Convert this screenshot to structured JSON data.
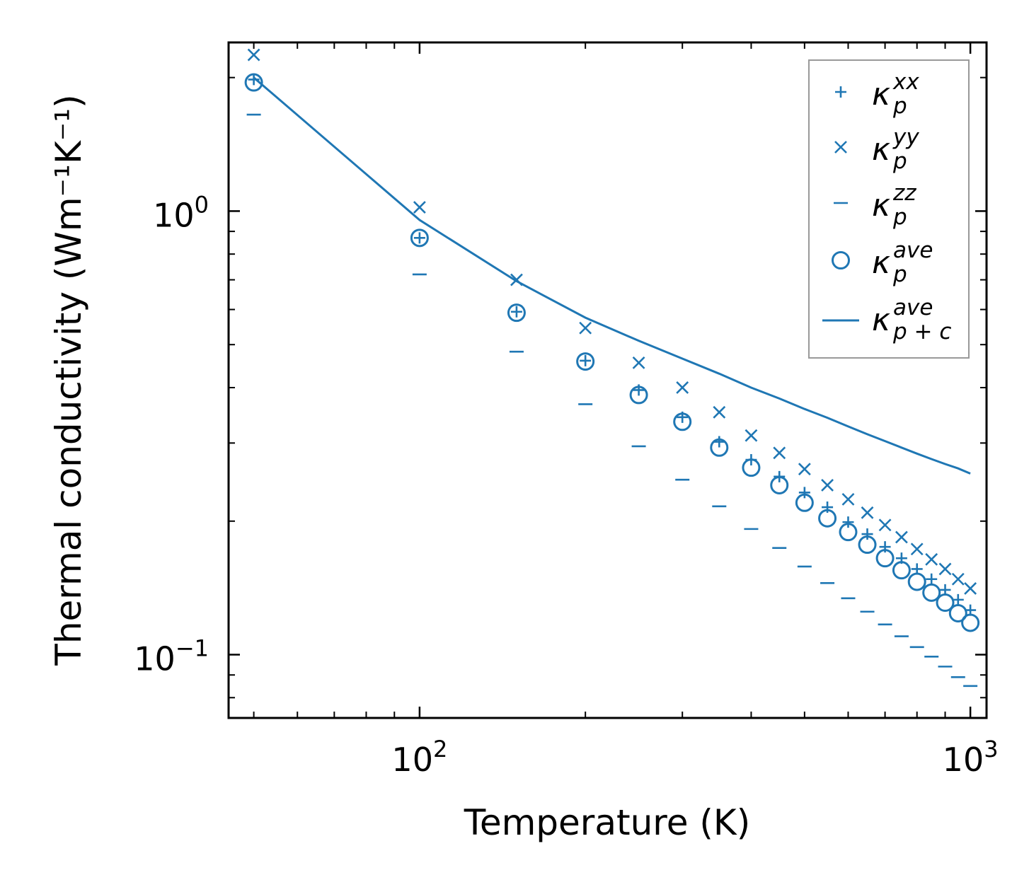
{
  "chart_data": {
    "type": "scatter",
    "xscale": "log",
    "yscale": "log",
    "xlabel": "Temperature (K)",
    "ylabel": "Thermal conductivity (Wm⁻¹K⁻¹)",
    "xlim": [
      45,
      1070
    ],
    "ylim": [
      0.072,
      2.4
    ],
    "x_ticks": [
      {
        "value": 100,
        "base": "10",
        "exp": "2"
      },
      {
        "value": 1000,
        "base": "10",
        "exp": "3"
      }
    ],
    "y_ticks": [
      {
        "value": 0.1,
        "base": "10",
        "exp": "−1"
      },
      {
        "value": 1,
        "base": "10",
        "exp": "0"
      }
    ],
    "legend_position": "upper right",
    "color": "#1f77b4",
    "x": [
      50,
      100,
      150,
      200,
      250,
      300,
      350,
      400,
      450,
      500,
      550,
      600,
      650,
      700,
      750,
      800,
      850,
      900,
      950,
      1000
    ],
    "series": [
      {
        "name": "kappa_p_xx",
        "symbol": "κ",
        "sub": "p",
        "sup": "xx",
        "marker": "plus",
        "values": [
          1.98,
          0.87,
          0.593,
          0.46,
          0.395,
          0.343,
          0.302,
          0.275,
          0.252,
          0.232,
          0.215,
          0.199,
          0.187,
          0.175,
          0.165,
          0.156,
          0.148,
          0.14,
          0.133,
          0.126
        ]
      },
      {
        "name": "kappa_p_yy",
        "symbol": "κ",
        "sub": "p",
        "sup": "yy",
        "marker": "x",
        "values": [
          2.25,
          1.02,
          0.7,
          0.545,
          0.455,
          0.4,
          0.352,
          0.312,
          0.285,
          0.262,
          0.241,
          0.224,
          0.209,
          0.196,
          0.184,
          0.173,
          0.164,
          0.156,
          0.148,
          0.141
        ]
      },
      {
        "name": "kappa_p_zz",
        "symbol": "κ",
        "sub": "p",
        "sup": "zz",
        "marker": "dash",
        "values": [
          1.65,
          0.72,
          0.482,
          0.367,
          0.295,
          0.248,
          0.216,
          0.192,
          0.174,
          0.158,
          0.145,
          0.134,
          0.125,
          0.117,
          0.11,
          0.104,
          0.099,
          0.094,
          0.089,
          0.085
        ]
      },
      {
        "name": "kappa_p_ave",
        "symbol": "κ",
        "sub": "p",
        "sup": "ave",
        "marker": "circle",
        "values": [
          1.95,
          0.87,
          0.59,
          0.458,
          0.385,
          0.335,
          0.293,
          0.264,
          0.241,
          0.22,
          0.203,
          0.189,
          0.177,
          0.165,
          0.155,
          0.146,
          0.138,
          0.131,
          0.124,
          0.118
        ]
      },
      {
        "name": "kappa_p+c_ave",
        "symbol": "κ",
        "sub": "p + c",
        "sup": "ave",
        "marker": "line",
        "values": [
          2.0,
          0.955,
          0.695,
          0.575,
          0.51,
          0.465,
          0.43,
          0.4,
          0.378,
          0.358,
          0.342,
          0.327,
          0.314,
          0.303,
          0.293,
          0.284,
          0.276,
          0.269,
          0.263,
          0.256
        ]
      }
    ]
  }
}
